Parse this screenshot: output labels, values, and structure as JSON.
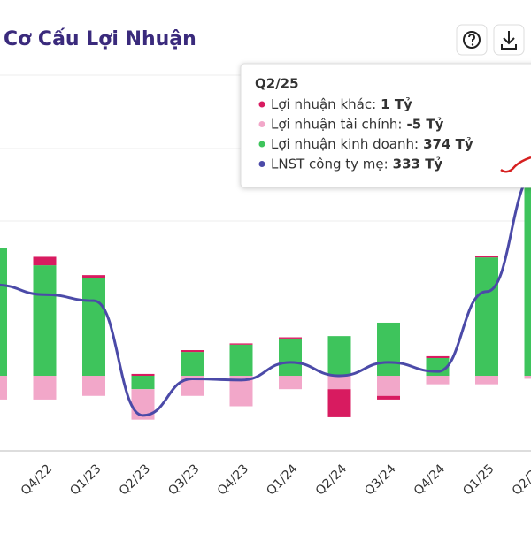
{
  "chart_data": {
    "type": "bar-line",
    "title": "Cơ Cấu Lợi Nhuận",
    "categories": [
      null,
      "Q4/22",
      "Q1/23",
      "Q2/23",
      "Q3/23",
      "Q4/23",
      "Q1/24",
      "Q2/24",
      "Q3/24",
      "Q4/24",
      "Q1/25",
      "Q2/25"
    ],
    "series": [
      {
        "color": "#d81b60",
        "kind": "bar",
        "values": [
          0,
          14,
          5,
          3,
          3,
          2,
          2,
          -46,
          -6,
          3,
          2,
          1
        ]
      },
      {
        "color": "#f2a7c9",
        "kind": "bar",
        "values": [
          -39,
          -39,
          -33,
          -50,
          -33,
          -50,
          -22,
          -22,
          -33,
          -14,
          -14,
          -5
        ]
      },
      {
        "color": "#3ec45c",
        "kind": "bar",
        "values": [
          210,
          181,
          160,
          -22,
          39,
          51,
          61,
          65,
          87,
          29,
          194,
          374
        ]
      },
      {
        "color": "#4b4aa8",
        "kind": "line",
        "values": [
          149,
          133,
          123,
          -65,
          -5,
          -7,
          22,
          0,
          22,
          7,
          138,
          333
        ]
      }
    ],
    "tooltip": {
      "title": "Q2/25",
      "rows": [
        {
          "label": "Lợi nhuận khác:",
          "value": "1 Tỷ"
        },
        {
          "label": "Lợi nhuận tài chính:",
          "value": "-5 Tỷ"
        },
        {
          "label": "Lợi nhuận kinh doanh:",
          "value": "374 Tỷ"
        },
        {
          "label": "LNST công ty mẹ:",
          "value": "333 Tỷ"
        }
      ]
    }
  }
}
